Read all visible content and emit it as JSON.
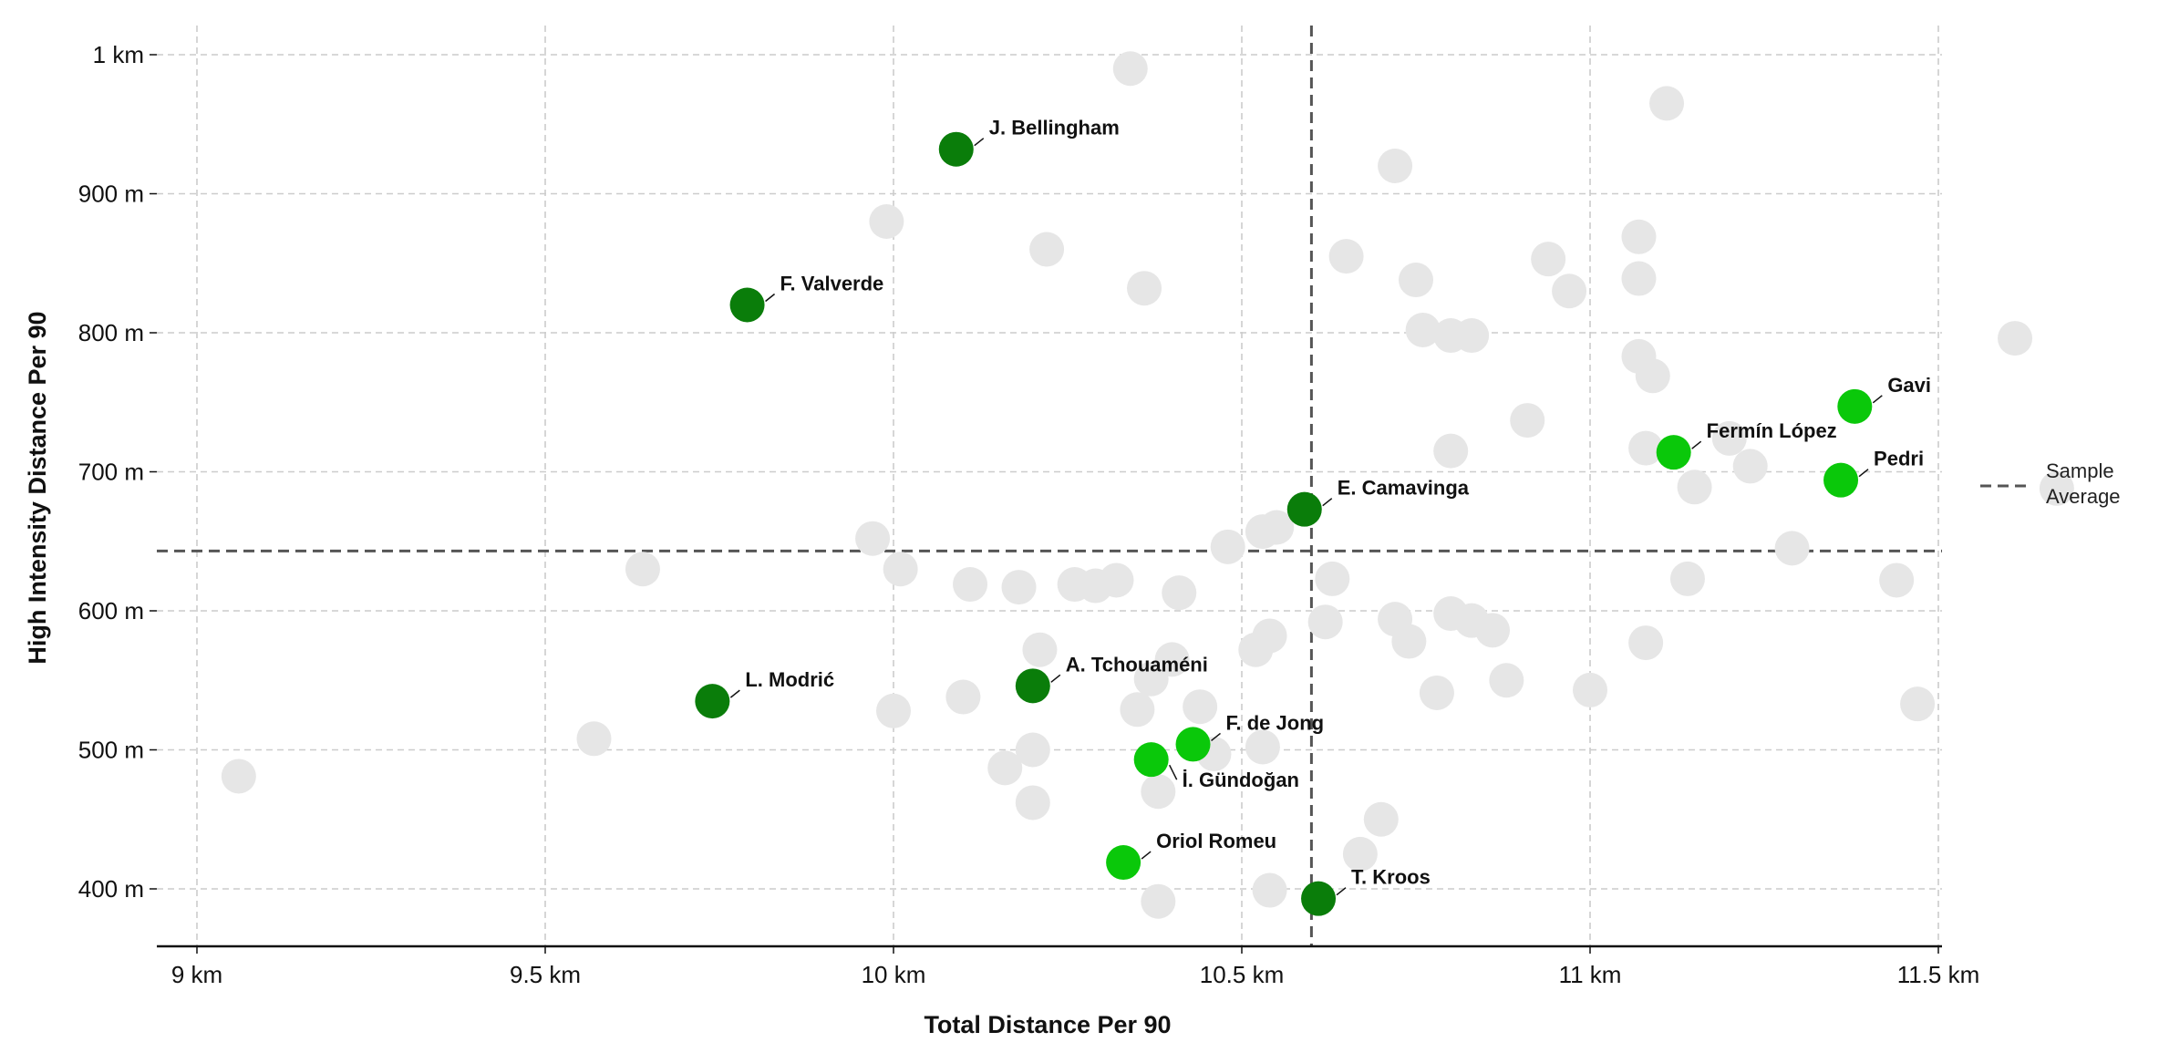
{
  "chart_data": {
    "type": "scatter",
    "xlabel": "Total Distance Per 90",
    "ylabel": "High Intensity Distance Per 90",
    "xlim": [
      8.93,
      11.82
    ],
    "ylim": [
      360,
      1020
    ],
    "x_unit": "km",
    "y_unit": "m",
    "x_ticks": [
      {
        "value": 9.0,
        "label": "9 km"
      },
      {
        "value": 9.5,
        "label": "9.5 km"
      },
      {
        "value": 10.0,
        "label": "10 km"
      },
      {
        "value": 10.5,
        "label": "10.5 km"
      },
      {
        "value": 11.0,
        "label": "11 km"
      },
      {
        "value": 11.5,
        "label": "11.5 km"
      }
    ],
    "y_ticks": [
      {
        "value": 400,
        "label": "400 m"
      },
      {
        "value": 500,
        "label": "500 m"
      },
      {
        "value": 600,
        "label": "600 m"
      },
      {
        "value": 700,
        "label": "700 m"
      },
      {
        "value": 800,
        "label": "800 m"
      },
      {
        "value": 900,
        "label": "900 m"
      },
      {
        "value": 1000,
        "label": "1 km"
      }
    ],
    "grid": true,
    "average_lines": {
      "x": 10.6,
      "y": 643
    },
    "legend": {
      "label": "Sample Average",
      "lines": [
        "Sample",
        "Average"
      ],
      "placement": "right"
    },
    "colors": {
      "background_points": "#e6e6e6",
      "dark_green": "#0a7d0a",
      "bright_green": "#0ac80a",
      "average_line": "#555555",
      "grid": "#cccccc"
    },
    "highlighted": [
      {
        "name": "J. Bellingham",
        "x": 10.09,
        "y": 932,
        "color": "dark_green"
      },
      {
        "name": "F. Valverde",
        "x": 9.79,
        "y": 820,
        "color": "dark_green"
      },
      {
        "name": "E. Camavinga",
        "x": 10.59,
        "y": 673,
        "color": "dark_green"
      },
      {
        "name": "L. Modrić",
        "x": 9.74,
        "y": 535,
        "color": "dark_green"
      },
      {
        "name": "A. Tchouaméni",
        "x": 10.2,
        "y": 546,
        "color": "dark_green"
      },
      {
        "name": "T. Kroos",
        "x": 10.61,
        "y": 393,
        "color": "dark_green"
      },
      {
        "name": "Gavi",
        "x": 11.38,
        "y": 747,
        "color": "bright_green"
      },
      {
        "name": "Fermín López",
        "x": 11.12,
        "y": 714,
        "color": "bright_green"
      },
      {
        "name": "Pedri",
        "x": 11.36,
        "y": 694,
        "color": "bright_green"
      },
      {
        "name": "F. de Jong",
        "x": 10.43,
        "y": 504,
        "color": "bright_green"
      },
      {
        "name": "İ. Gündoğan",
        "x": 10.37,
        "y": 493,
        "color": "bright_green"
      },
      {
        "name": "Oriol Romeu",
        "x": 10.33,
        "y": 419,
        "color": "bright_green"
      }
    ],
    "background": [
      [
        10.34,
        990
      ],
      [
        11.11,
        965
      ],
      [
        10.72,
        920
      ],
      [
        9.99,
        880
      ],
      [
        10.22,
        860
      ],
      [
        10.36,
        832
      ],
      [
        10.65,
        855
      ],
      [
        10.75,
        838
      ],
      [
        10.94,
        853
      ],
      [
        10.97,
        830
      ],
      [
        11.07,
        869
      ],
      [
        11.07,
        839
      ],
      [
        11.61,
        796
      ],
      [
        10.76,
        802
      ],
      [
        10.8,
        798
      ],
      [
        10.83,
        798
      ],
      [
        11.07,
        783
      ],
      [
        11.09,
        769
      ],
      [
        10.91,
        737
      ],
      [
        11.08,
        717
      ],
      [
        11.2,
        724
      ],
      [
        11.23,
        704
      ],
      [
        10.8,
        715
      ],
      [
        11.15,
        689
      ],
      [
        11.67,
        688
      ],
      [
        11.29,
        645
      ],
      [
        9.97,
        652
      ],
      [
        10.53,
        657
      ],
      [
        10.55,
        660
      ],
      [
        10.48,
        646
      ],
      [
        9.64,
        630
      ],
      [
        10.01,
        630
      ],
      [
        10.11,
        619
      ],
      [
        10.18,
        617
      ],
      [
        10.26,
        619
      ],
      [
        10.29,
        618
      ],
      [
        10.32,
        622
      ],
      [
        10.41,
        613
      ],
      [
        10.63,
        623
      ],
      [
        11.14,
        623
      ],
      [
        11.44,
        622
      ],
      [
        10.62,
        592
      ],
      [
        10.72,
        594
      ],
      [
        10.8,
        598
      ],
      [
        10.83,
        593
      ],
      [
        10.86,
        586
      ],
      [
        10.74,
        578
      ],
      [
        10.21,
        572
      ],
      [
        10.4,
        565
      ],
      [
        10.52,
        572
      ],
      [
        10.54,
        582
      ],
      [
        11.08,
        577
      ],
      [
        10.37,
        551
      ],
      [
        10.78,
        541
      ],
      [
        10.88,
        550
      ],
      [
        11.0,
        543
      ],
      [
        10.1,
        538
      ],
      [
        10.0,
        528
      ],
      [
        10.35,
        529
      ],
      [
        10.44,
        531
      ],
      [
        11.47,
        533
      ],
      [
        9.57,
        508
      ],
      [
        10.2,
        500
      ],
      [
        10.46,
        497
      ],
      [
        10.53,
        502
      ],
      [
        10.16,
        487
      ],
      [
        10.38,
        470
      ],
      [
        9.06,
        481
      ],
      [
        10.2,
        462
      ],
      [
        10.7,
        450
      ],
      [
        10.67,
        425
      ],
      [
        10.54,
        399
      ],
      [
        10.38,
        391
      ]
    ]
  }
}
